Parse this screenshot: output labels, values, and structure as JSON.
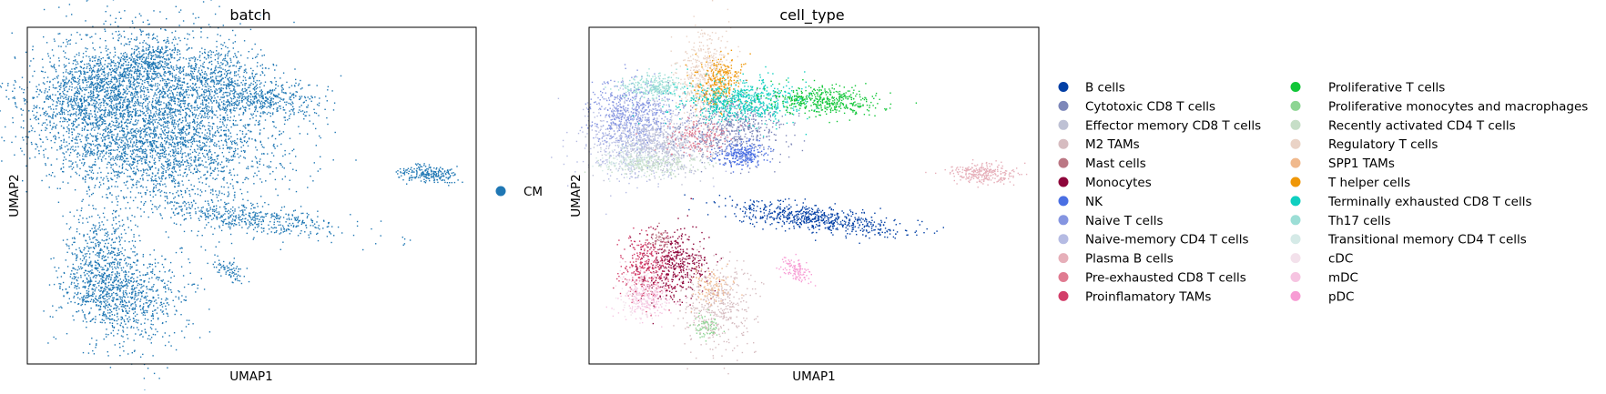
{
  "chart_data": [
    {
      "type": "scatter",
      "title": "batch",
      "xlabel": "UMAP1",
      "ylabel": "UMAP2",
      "grid": false,
      "ticks": "none",
      "legend_position": "right",
      "legend": [
        {
          "label": "CM",
          "color": "#1f77b4"
        }
      ],
      "clusters": [
        {
          "name": "CM",
          "color": "#1f77b4"
        }
      ]
    },
    {
      "type": "scatter",
      "title": "cell_type",
      "xlabel": "UMAP1",
      "ylabel": "UMAP2",
      "grid": false,
      "ticks": "none",
      "legend_position": "right",
      "legend": [
        {
          "label": "B cells",
          "color": "#023fa5"
        },
        {
          "label": "Cytotoxic CD8 T cells",
          "color": "#7d87b9"
        },
        {
          "label": "Effector memory CD8 T cells",
          "color": "#bec1d4"
        },
        {
          "label": "M2 TAMs",
          "color": "#d6bcc0"
        },
        {
          "label": "Mast cells",
          "color": "#bb7784"
        },
        {
          "label": "Monocytes",
          "color": "#8e063b"
        },
        {
          "label": "NK",
          "color": "#4a6fe3"
        },
        {
          "label": "Naive T cells",
          "color": "#8595e1"
        },
        {
          "label": "Naive-memory CD4 T cells",
          "color": "#b5bbe3"
        },
        {
          "label": "Plasma B cells",
          "color": "#e6afb9"
        },
        {
          "label": "Pre-exhausted CD8 T cells",
          "color": "#e07b91"
        },
        {
          "label": "Proinflamatory TAMs",
          "color": "#d33f6a"
        },
        {
          "label": "Proliferative T cells",
          "color": "#11c638"
        },
        {
          "label": "Proliferative monocytes and macrophages",
          "color": "#8dd593"
        },
        {
          "label": "Recently activated CD4 T cells",
          "color": "#c6dec7"
        },
        {
          "label": "Regulatory T cells",
          "color": "#ead3c6"
        },
        {
          "label": "SPP1 TAMs",
          "color": "#f0b98d"
        },
        {
          "label": "T helper cells",
          "color": "#ef9708"
        },
        {
          "label": "Terminally exhausted CD8 T cells",
          "color": "#0fcfc0"
        },
        {
          "label": "Th17 cells",
          "color": "#9cded6"
        },
        {
          "label": "Transitional memory CD4 T cells",
          "color": "#d5eae7"
        },
        {
          "label": "cDC",
          "color": "#f3e1eb"
        },
        {
          "label": "mDC",
          "color": "#f6c4e1"
        },
        {
          "label": "pDC",
          "color": "#f79cd4"
        }
      ]
    }
  ]
}
